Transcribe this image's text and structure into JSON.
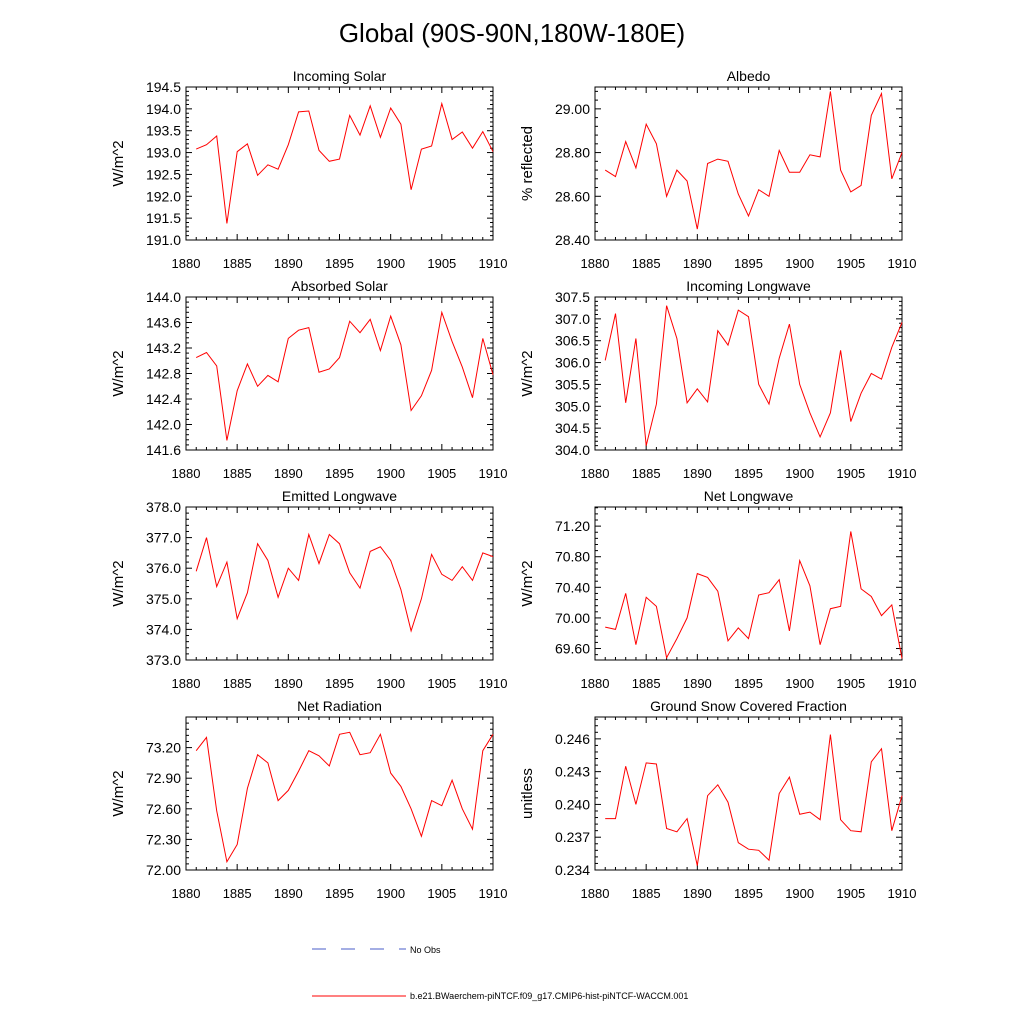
{
  "figure": {
    "title": "Global (90S-90N,180W-180E)",
    "line_color": "#ff0000",
    "obs_color": "#4a5cc8"
  },
  "legend": {
    "obs_label": "No Obs",
    "model_label": "b.e21.BWaerchem-piNTCF.f09_g17.CMIP6-hist-piNTCF-WACCM.001"
  },
  "chart_data": [
    {
      "type": "line",
      "title": "Incoming Solar",
      "ylabel": "W/m^2",
      "xlim": [
        1880,
        1910
      ],
      "ylim": [
        191.0,
        194.5
      ],
      "xticks": [
        "1880",
        "1885",
        "1890",
        "1895",
        "1900",
        "1905",
        "1910"
      ],
      "yticks": [
        "191.0",
        "191.5",
        "192.0",
        "192.5",
        "193.0",
        "193.5",
        "194.0",
        "194.5"
      ],
      "x": [
        1881,
        1882,
        1883,
        1884,
        1885,
        1886,
        1887,
        1888,
        1889,
        1890,
        1891,
        1892,
        1893,
        1894,
        1895,
        1896,
        1897,
        1898,
        1899,
        1900,
        1901,
        1902,
        1903,
        1904,
        1905,
        1906,
        1907,
        1908,
        1909,
        1910
      ],
      "values": [
        193.08,
        193.18,
        193.38,
        191.38,
        193.02,
        193.2,
        192.48,
        192.72,
        192.62,
        193.18,
        193.93,
        193.95,
        193.05,
        192.8,
        192.85,
        193.85,
        193.4,
        194.07,
        193.35,
        194.02,
        193.65,
        192.15,
        193.08,
        193.15,
        194.12,
        193.3,
        193.47,
        193.1,
        193.48,
        193.02
      ]
    },
    {
      "type": "line",
      "title": "Albedo",
      "ylabel": "% reflected",
      "xlim": [
        1880,
        1910
      ],
      "ylim": [
        28.4,
        29.1
      ],
      "xticks": [
        "1880",
        "1885",
        "1890",
        "1895",
        "1900",
        "1905",
        "1910"
      ],
      "yticks": [
        "28.40",
        "28.60",
        "28.80",
        "29.00"
      ],
      "x": [
        1881,
        1882,
        1883,
        1884,
        1885,
        1886,
        1887,
        1888,
        1889,
        1890,
        1891,
        1892,
        1893,
        1894,
        1895,
        1896,
        1897,
        1898,
        1899,
        1900,
        1901,
        1902,
        1903,
        1904,
        1905,
        1906,
        1907,
        1908,
        1909,
        1910
      ],
      "values": [
        28.72,
        28.69,
        28.85,
        28.73,
        28.93,
        28.84,
        28.6,
        28.72,
        28.67,
        28.45,
        28.75,
        28.77,
        28.76,
        28.61,
        28.51,
        28.63,
        28.6,
        28.81,
        28.71,
        28.71,
        28.79,
        28.78,
        29.08,
        28.72,
        28.62,
        28.65,
        28.97,
        29.07,
        28.68,
        28.8
      ]
    },
    {
      "type": "line",
      "title": "Absorbed Solar",
      "ylabel": "W/m^2",
      "xlim": [
        1880,
        1910
      ],
      "ylim": [
        141.6,
        144.0
      ],
      "xticks": [
        "1880",
        "1885",
        "1890",
        "1895",
        "1900",
        "1905",
        "1910"
      ],
      "yticks": [
        "141.6",
        "142.0",
        "142.4",
        "142.8",
        "143.2",
        "143.6",
        "144.0"
      ],
      "x": [
        1881,
        1882,
        1883,
        1884,
        1885,
        1886,
        1887,
        1888,
        1889,
        1890,
        1891,
        1892,
        1893,
        1894,
        1895,
        1896,
        1897,
        1898,
        1899,
        1900,
        1901,
        1902,
        1903,
        1904,
        1905,
        1906,
        1907,
        1908,
        1909,
        1910
      ],
      "values": [
        143.05,
        143.13,
        142.92,
        141.75,
        142.53,
        142.95,
        142.6,
        142.77,
        142.67,
        143.35,
        143.48,
        143.52,
        142.82,
        142.87,
        143.05,
        143.62,
        143.44,
        143.65,
        143.16,
        143.7,
        143.25,
        142.22,
        142.45,
        142.85,
        143.76,
        143.3,
        142.9,
        142.42,
        143.35,
        142.78
      ]
    },
    {
      "type": "line",
      "title": "Incoming Longwave",
      "ylabel": "W/m^2",
      "xlim": [
        1880,
        1910
      ],
      "ylim": [
        304.0,
        307.5
      ],
      "xticks": [
        "1880",
        "1885",
        "1890",
        "1895",
        "1900",
        "1905",
        "1910"
      ],
      "yticks": [
        "304.0",
        "304.5",
        "305.0",
        "305.5",
        "306.0",
        "306.5",
        "307.0",
        "307.5"
      ],
      "x": [
        1881,
        1882,
        1883,
        1884,
        1885,
        1886,
        1887,
        1888,
        1889,
        1890,
        1891,
        1892,
        1893,
        1894,
        1895,
        1896,
        1897,
        1898,
        1899,
        1900,
        1901,
        1902,
        1903,
        1904,
        1905,
        1906,
        1907,
        1908,
        1909,
        1910
      ],
      "values": [
        306.05,
        307.12,
        305.08,
        306.55,
        304.1,
        305.05,
        307.3,
        306.55,
        305.08,
        305.4,
        305.1,
        306.73,
        306.4,
        307.2,
        307.05,
        305.5,
        305.05,
        306.1,
        306.88,
        305.5,
        304.85,
        304.3,
        304.85,
        306.28,
        304.65,
        305.3,
        305.75,
        305.62,
        306.35,
        306.92
      ]
    },
    {
      "type": "line",
      "title": "Emitted Longwave",
      "ylabel": "W/m^2",
      "xlim": [
        1880,
        1910
      ],
      "ylim": [
        373.0,
        378.0
      ],
      "xticks": [
        "1880",
        "1885",
        "1890",
        "1895",
        "1900",
        "1905",
        "1910"
      ],
      "yticks": [
        "373.0",
        "374.0",
        "375.0",
        "376.0",
        "377.0",
        "378.0"
      ],
      "x": [
        1881,
        1882,
        1883,
        1884,
        1885,
        1886,
        1887,
        1888,
        1889,
        1890,
        1891,
        1892,
        1893,
        1894,
        1895,
        1896,
        1897,
        1898,
        1899,
        1900,
        1901,
        1902,
        1903,
        1904,
        1905,
        1906,
        1907,
        1908,
        1909,
        1910
      ],
      "values": [
        375.9,
        377.0,
        375.4,
        376.2,
        374.35,
        375.2,
        376.8,
        376.25,
        375.05,
        376.0,
        375.6,
        377.1,
        376.15,
        377.1,
        376.8,
        375.85,
        375.35,
        376.55,
        376.7,
        376.25,
        375.3,
        373.95,
        375.0,
        376.45,
        375.8,
        375.6,
        376.05,
        375.6,
        376.5,
        376.38
      ]
    },
    {
      "type": "line",
      "title": "Net Longwave",
      "ylabel": "W/m^2",
      "xlim": [
        1880,
        1910
      ],
      "ylim": [
        69.45,
        71.45
      ],
      "xticks": [
        "1880",
        "1885",
        "1890",
        "1895",
        "1900",
        "1905",
        "1910"
      ],
      "yticks": [
        "69.60",
        "70.00",
        "70.40",
        "70.80",
        "71.20"
      ],
      "x": [
        1881,
        1882,
        1883,
        1884,
        1885,
        1886,
        1887,
        1888,
        1889,
        1890,
        1891,
        1892,
        1893,
        1894,
        1895,
        1896,
        1897,
        1898,
        1899,
        1900,
        1901,
        1902,
        1903,
        1904,
        1905,
        1906,
        1907,
        1908,
        1909,
        1910
      ],
      "values": [
        69.88,
        69.85,
        70.32,
        69.65,
        70.27,
        70.15,
        69.48,
        69.73,
        70.0,
        70.58,
        70.53,
        70.35,
        69.7,
        69.87,
        69.73,
        70.3,
        70.33,
        70.5,
        69.83,
        70.75,
        70.42,
        69.65,
        70.12,
        70.15,
        71.13,
        70.38,
        70.28,
        70.03,
        70.17,
        69.47
      ]
    },
    {
      "type": "line",
      "title": "Net Radiation",
      "ylabel": "W/m^2",
      "xlim": [
        1880,
        1910
      ],
      "ylim": [
        72.0,
        73.5
      ],
      "xticks": [
        "1880",
        "1885",
        "1890",
        "1895",
        "1900",
        "1905",
        "1910"
      ],
      "yticks": [
        "72.00",
        "72.30",
        "72.60",
        "72.90",
        "73.20"
      ],
      "x": [
        1881,
        1882,
        1883,
        1884,
        1885,
        1886,
        1887,
        1888,
        1889,
        1890,
        1891,
        1892,
        1893,
        1894,
        1895,
        1896,
        1897,
        1898,
        1899,
        1900,
        1901,
        1902,
        1903,
        1904,
        1905,
        1906,
        1907,
        1908,
        1909,
        1910
      ],
      "values": [
        73.17,
        73.3,
        72.58,
        72.08,
        72.25,
        72.8,
        73.13,
        73.05,
        72.68,
        72.78,
        72.97,
        73.17,
        73.12,
        73.02,
        73.33,
        73.35,
        73.13,
        73.15,
        73.33,
        72.95,
        72.82,
        72.6,
        72.33,
        72.68,
        72.63,
        72.88,
        72.6,
        72.4,
        73.17,
        73.33
      ]
    },
    {
      "type": "line",
      "title": "Ground Snow Covered Fraction",
      "ylabel": "unitless",
      "xlim": [
        1880,
        1910
      ],
      "ylim": [
        0.234,
        0.248
      ],
      "xticks": [
        "1880",
        "1885",
        "1890",
        "1895",
        "1900",
        "1905",
        "1910"
      ],
      "yticks": [
        "0.234",
        "0.237",
        "0.240",
        "0.243",
        "0.246"
      ],
      "x": [
        1881,
        1882,
        1883,
        1884,
        1885,
        1886,
        1887,
        1888,
        1889,
        1890,
        1891,
        1892,
        1893,
        1894,
        1895,
        1896,
        1897,
        1898,
        1899,
        1900,
        1901,
        1902,
        1903,
        1904,
        1905,
        1906,
        1907,
        1908,
        1909,
        1910
      ],
      "values": [
        0.2387,
        0.2387,
        0.2435,
        0.24,
        0.2438,
        0.2437,
        0.2378,
        0.2375,
        0.2387,
        0.2344,
        0.2408,
        0.2418,
        0.2402,
        0.2365,
        0.2359,
        0.2358,
        0.2349,
        0.241,
        0.2425,
        0.2391,
        0.2393,
        0.2386,
        0.2464,
        0.2386,
        0.2376,
        0.2375,
        0.2439,
        0.2451,
        0.2376,
        0.2408
      ]
    }
  ]
}
